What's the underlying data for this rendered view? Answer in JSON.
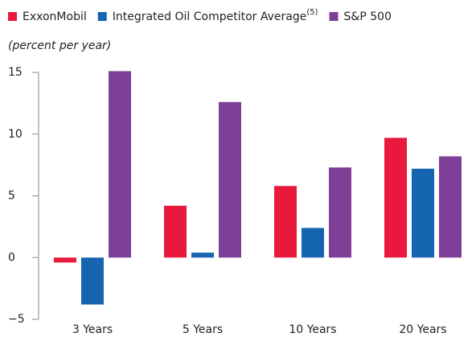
{
  "chart_data": {
    "type": "bar",
    "subtitle": "(percent per year)",
    "categories": [
      "3 Years",
      "5 Years",
      "10 Years",
      "20 Years"
    ],
    "series": [
      {
        "name": "ExxonMobil",
        "color": "#e8193c",
        "values": [
          -0.4,
          4.2,
          5.8,
          9.7
        ]
      },
      {
        "name": "Integrated Oil Competitor Average",
        "name_superscript": "(5)",
        "color": "#1565b0",
        "values": [
          -3.8,
          0.4,
          2.4,
          7.2
        ]
      },
      {
        "name": "S&P 500",
        "color": "#7e3f98",
        "values": [
          15.1,
          12.6,
          7.3,
          8.2
        ]
      }
    ],
    "ylim": [
      -5,
      15
    ],
    "yticks": [
      {
        "value": -5,
        "label": "−5"
      },
      0,
      5,
      10,
      15
    ],
    "legend": "top-left"
  }
}
